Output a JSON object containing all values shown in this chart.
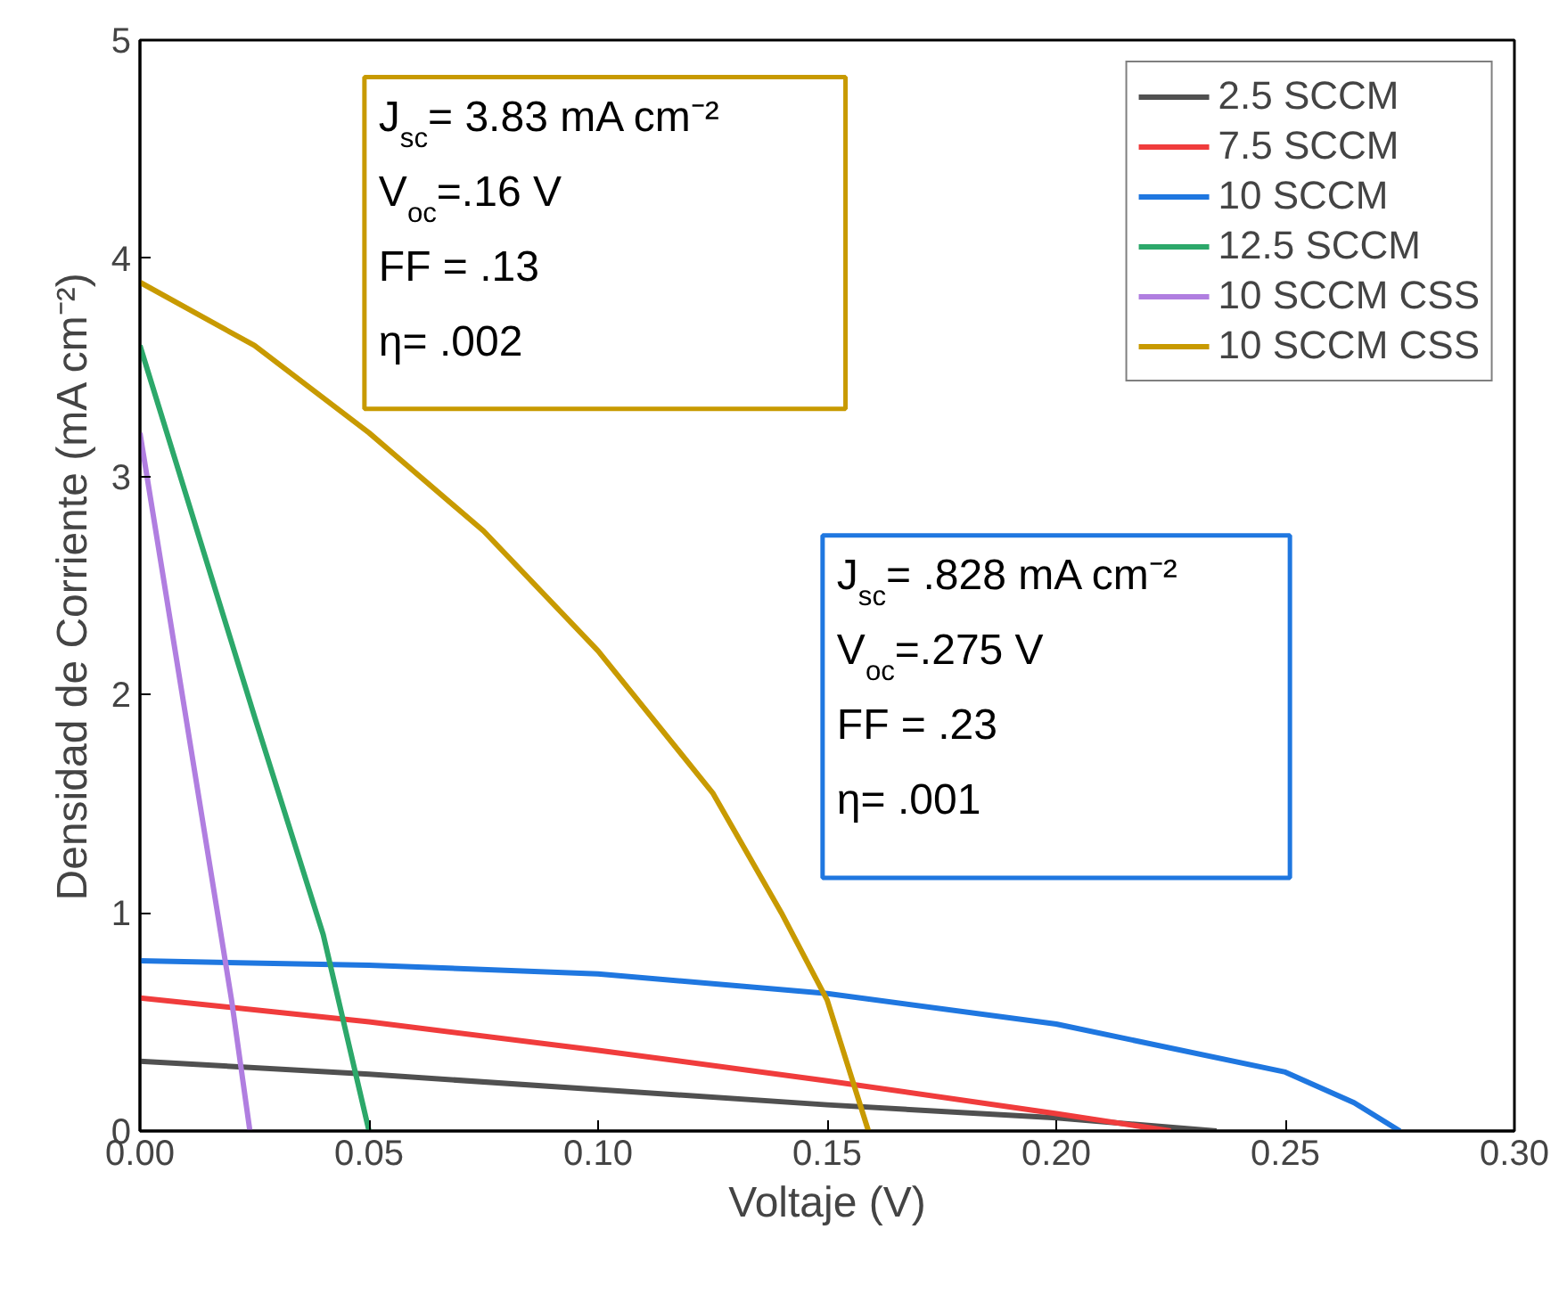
{
  "chart_data": {
    "type": "line",
    "xlabel": "Voltaje (V)",
    "ylabel": "Densidad de Corriente (mA cm⁻²)",
    "xlim": [
      0,
      0.3
    ],
    "ylim": [
      0,
      5
    ],
    "xticks": [
      {
        "value": 0,
        "label": "0.00"
      },
      {
        "value": 0.05,
        "label": "0.05"
      },
      {
        "value": 0.1,
        "label": "0.10"
      },
      {
        "value": 0.15,
        "label": "0.15"
      },
      {
        "value": 0.2,
        "label": "0.20"
      },
      {
        "value": 0.25,
        "label": "0.25"
      },
      {
        "value": 0.3,
        "label": "0.30"
      }
    ],
    "yticks": [
      0,
      1,
      2,
      3,
      4,
      5
    ],
    "grid": false,
    "legend": "top right",
    "marker": "none",
    "line_style": "solid",
    "series": [
      {
        "name": "2.5 SCCM",
        "color": "#505050",
        "x": [
          0,
          0.05,
          0.1,
          0.15,
          0.2,
          0.235
        ],
        "values": [
          0.32,
          0.26,
          0.19,
          0.12,
          0.06,
          0
        ]
      },
      {
        "name": "7.5 SCCM",
        "color": "#f03c3c",
        "x": [
          0,
          0.05,
          0.1,
          0.15,
          0.2,
          0.225
        ],
        "values": [
          0.61,
          0.5,
          0.37,
          0.23,
          0.08,
          0
        ]
      },
      {
        "name": "10 SCCM",
        "color": "#1f77e0",
        "x": [
          0,
          0.05,
          0.1,
          0.15,
          0.2,
          0.25,
          0.265,
          0.275
        ],
        "values": [
          0.78,
          0.76,
          0.72,
          0.63,
          0.49,
          0.27,
          0.13,
          0
        ]
      },
      {
        "name": "12.5 SCCM",
        "color": "#2ca86a",
        "x": [
          0,
          0.025,
          0.04,
          0.05
        ],
        "values": [
          3.6,
          1.9,
          0.9,
          0
        ]
      },
      {
        "name": "10 SCCM CSS",
        "color": "#b07ee0",
        "x": [
          0,
          0.01,
          0.02,
          0.024
        ],
        "values": [
          3.2,
          1.9,
          0.6,
          0
        ]
      },
      {
        "name": "10 SCCM CSS",
        "color": "#c89a00",
        "x": [
          0,
          0.025,
          0.05,
          0.075,
          0.1,
          0.125,
          0.14,
          0.15,
          0.159
        ],
        "values": [
          3.89,
          3.6,
          3.2,
          2.75,
          2.2,
          1.55,
          1.0,
          0.6,
          0
        ]
      }
    ],
    "annotations": [
      "J$_{sc}$= 3.83  mA cm⁻²\nV$_{oc}$=.16 V\nFF = .13\nη= .002",
      "J$_{sc}$= .828 mA cm⁻²\nV$_{oc}$=.275 V\nFF = .23\nη= .001"
    ]
  }
}
